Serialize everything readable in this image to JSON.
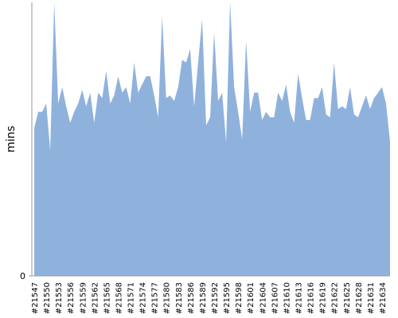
{
  "chart_data": {
    "type": "area",
    "y_label": "mins",
    "color": "#8fb2dd",
    "categories": [
      "#21547",
      null,
      null,
      "#21550",
      null,
      null,
      "#21553",
      null,
      null,
      "#21556",
      null,
      null,
      "#21559",
      null,
      null,
      "#21562",
      null,
      null,
      "#21565",
      null,
      null,
      "#21568",
      null,
      null,
      "#21571",
      null,
      null,
      "#21574",
      null,
      null,
      "#21577",
      null,
      null,
      "#21580",
      null,
      null,
      "#21583",
      null,
      null,
      "#21586",
      null,
      null,
      "#21589",
      null,
      null,
      "#21592",
      null,
      null,
      "#21595",
      null,
      null,
      "#21598",
      null,
      null,
      "#21601",
      null,
      null,
      "#21604",
      null,
      null,
      "#21607",
      null,
      null,
      "#21610",
      null,
      null,
      "#21613",
      null,
      null,
      "#21616",
      null,
      null,
      "#21619",
      null,
      null,
      "#21622",
      null,
      null,
      "#21625",
      null,
      null,
      "#21628",
      null,
      null,
      "#21631",
      null,
      null,
      "#21634",
      null,
      null
    ],
    "values": [
      54,
      60,
      60,
      63,
      46,
      100,
      63,
      69,
      62,
      56,
      60,
      63,
      68,
      62,
      67,
      56,
      67,
      65,
      75,
      63,
      66,
      73,
      67,
      69,
      63,
      78,
      67,
      70,
      73,
      73,
      66,
      58,
      95,
      65,
      66,
      64,
      69,
      79,
      78,
      83,
      62,
      78,
      94,
      55,
      58,
      89,
      64,
      67,
      49,
      100,
      69,
      60,
      50,
      86,
      60,
      67,
      67,
      57,
      60,
      58,
      58,
      67,
      64,
      70,
      60,
      56,
      74,
      65,
      57,
      57,
      65,
      65,
      69,
      59,
      58,
      78,
      61,
      62,
      61,
      69,
      59,
      58,
      62,
      66,
      61,
      65,
      67,
      69,
      63,
      49
    ],
    "ylim": [
      0,
      100
    ],
    "yticks": [
      0
    ]
  }
}
